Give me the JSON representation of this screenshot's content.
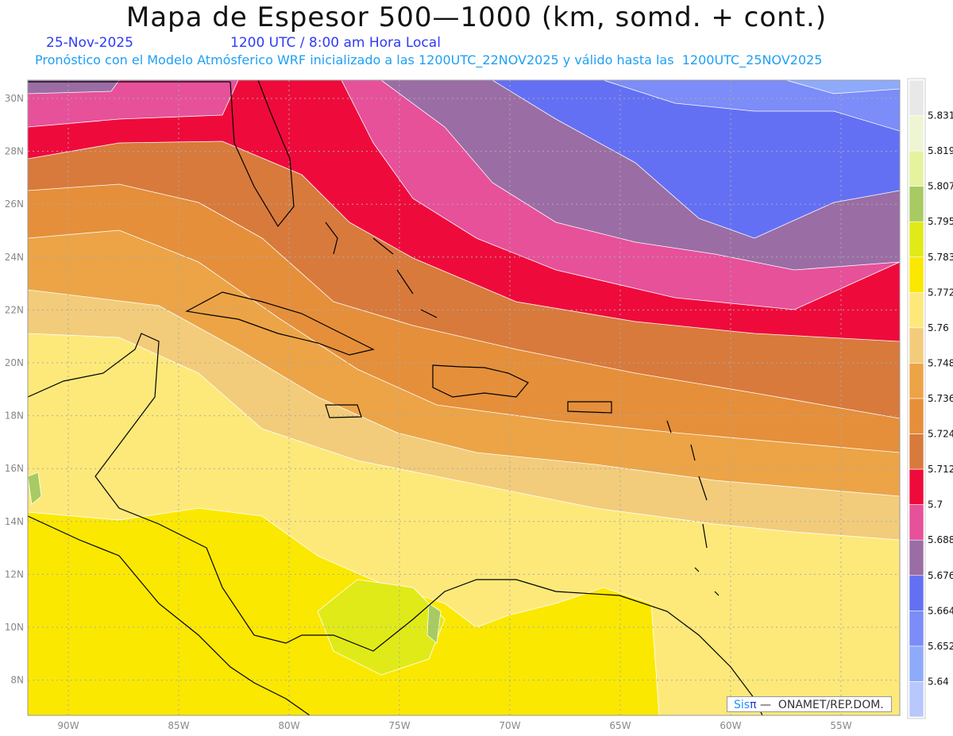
{
  "header": {
    "title": "Mapa de Espesor 500—1000 (km, somd. + cont.)",
    "date": "25-Nov-2025",
    "time": "1200 UTC / 8:00 am Hora Local",
    "subtitle": "Pronóstico con el Modelo Atmósferico WRF inicializado a las 1200UTC_22NOV2025 y válido hasta las  1200UTC_25NOV2025"
  },
  "axes": {
    "lat_labels": [
      {
        "v": 30,
        "t": "30N"
      },
      {
        "v": 28,
        "t": "28N"
      },
      {
        "v": 26,
        "t": "26N"
      },
      {
        "v": 24,
        "t": "24N"
      },
      {
        "v": 22,
        "t": "22N"
      },
      {
        "v": 20,
        "t": "20N"
      },
      {
        "v": 18,
        "t": "18N"
      },
      {
        "v": 16,
        "t": "16N"
      },
      {
        "v": 14,
        "t": "14N"
      },
      {
        "v": 12,
        "t": "12N"
      },
      {
        "v": 10,
        "t": "10N"
      },
      {
        "v": 8,
        "t": "8N"
      }
    ],
    "lon_labels": [
      {
        "v": 90,
        "t": "90W"
      },
      {
        "v": 85,
        "t": "85W"
      },
      {
        "v": 80,
        "t": "80W"
      },
      {
        "v": 75,
        "t": "75W"
      },
      {
        "v": 70,
        "t": "70W"
      },
      {
        "v": 65,
        "t": "65W"
      },
      {
        "v": 60,
        "t": "60W"
      },
      {
        "v": 55,
        "t": "55W"
      }
    ]
  },
  "colorbar": {
    "colors_top_to_bottom": [
      "#e8e8e8",
      "#eef5d2",
      "#e5f29e",
      "#a7cb62",
      "#e0ea18",
      "#fbe800",
      "#fde97a",
      "#f2cc7a",
      "#eca446",
      "#e58f3a",
      "#d87a3c",
      "#ef0a3c",
      "#e6519a",
      "#9b6da5",
      "#6470f4",
      "#7c8cf8",
      "#8eaafb",
      "#b8c8fc"
    ],
    "labels_top_to_bottom": [
      "5.831",
      "5.819",
      "5.807",
      "5.795",
      "5.783",
      "5.772",
      "5.76",
      "5.748",
      "5.736",
      "5.724",
      "5.712",
      "5.7",
      "5.688",
      "5.676",
      "5.664",
      "5.652",
      "5.64"
    ]
  },
  "credit": {
    "sis": "Sis",
    "pi": "π",
    "org": " —  ONAMET/REP.DOM."
  }
}
